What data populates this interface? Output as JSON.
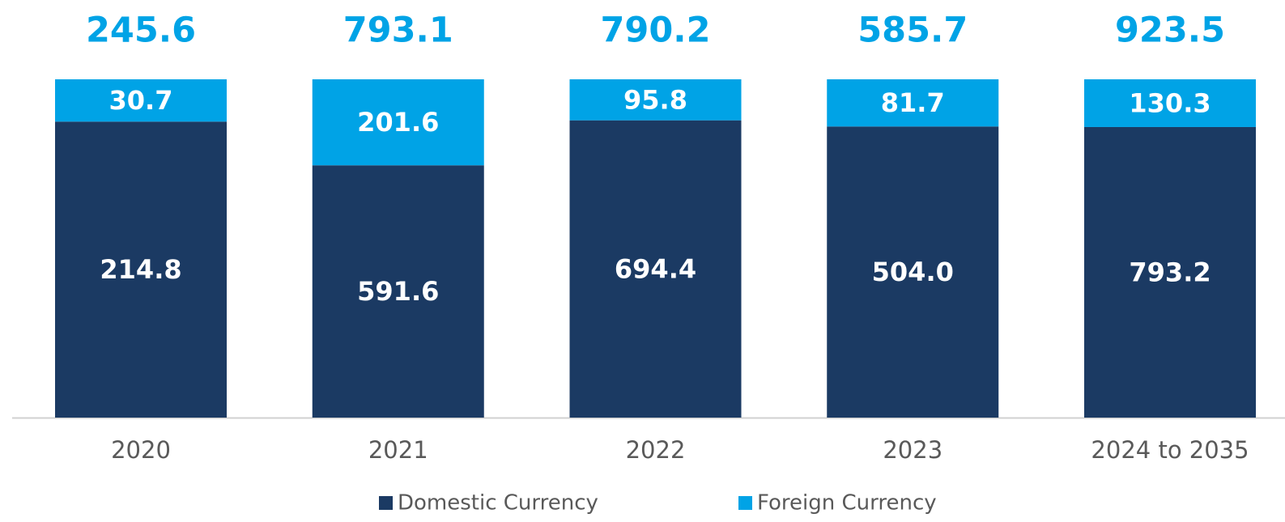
{
  "chart_data": {
    "type": "bar",
    "stacking": "percent",
    "categories": [
      "2020",
      "2021",
      "2022",
      "2023",
      "2024 to 2035"
    ],
    "series": [
      {
        "name": "Domestic Currency",
        "color": "#1b3a63",
        "values": [
          214.8,
          591.6,
          694.4,
          504.0,
          793.2
        ],
        "value_labels": [
          "214.8",
          "591.6",
          "694.4",
          "504.0",
          "793.2"
        ]
      },
      {
        "name": "Foreign Currency",
        "color": "#00a3e6",
        "values": [
          30.7,
          201.6,
          95.8,
          81.7,
          130.3
        ],
        "value_labels": [
          "30.7",
          "201.6",
          "95.8",
          "81.7",
          "130.3"
        ]
      }
    ],
    "totals": [
      245.6,
      793.1,
      790.2,
      585.7,
      923.5
    ],
    "totals_color": "#00a3e6",
    "legend": "bottom"
  }
}
